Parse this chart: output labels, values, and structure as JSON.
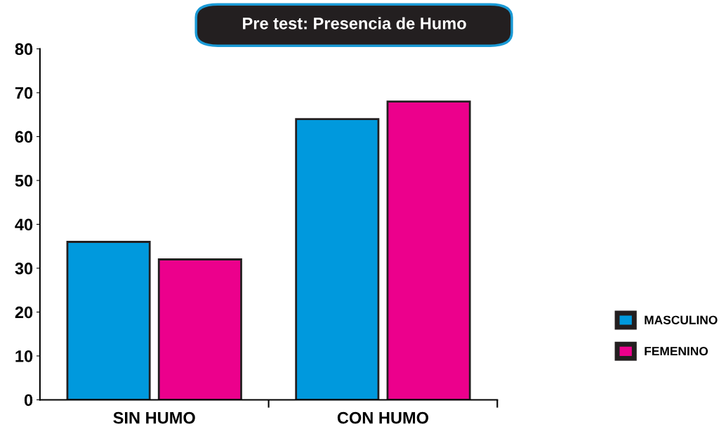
{
  "chart_data": {
    "type": "bar",
    "title": "Pre test: Presencia de Humo",
    "categories": [
      "SIN HUMO",
      "CON HUMO"
    ],
    "series": [
      {
        "name": "MASCULINO",
        "color": "#0099dd",
        "values": [
          36,
          64
        ]
      },
      {
        "name": "FEMENINO",
        "color": "#ec008c",
        "values": [
          32,
          68
        ]
      }
    ],
    "ylim": [
      0,
      80
    ],
    "yticks": [
      0,
      10,
      20,
      30,
      40,
      50,
      60,
      70,
      80
    ],
    "grid": false,
    "legend": "right"
  }
}
